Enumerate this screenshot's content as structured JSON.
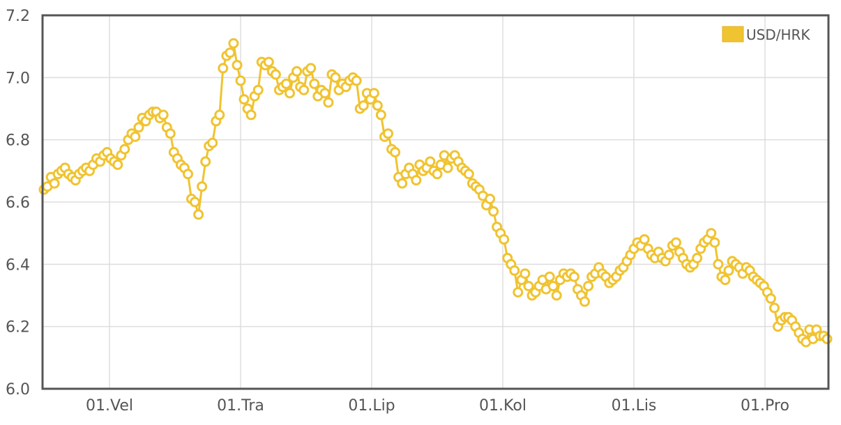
{
  "chart_data": {
    "type": "line",
    "title": "",
    "xlabel": "",
    "ylabel": "",
    "ylim": [
      6.0,
      7.2
    ],
    "y_ticks": [
      "6.0",
      "6.2",
      "6.4",
      "6.6",
      "6.8",
      "7.0",
      "7.2"
    ],
    "x_tick_labels": [
      "01.Vel",
      "01.Tra",
      "01.Lip",
      "01.Kol",
      "01.Lis",
      "01.Pro"
    ],
    "grid": true,
    "legend_position": "top-right",
    "series": [
      {
        "name": "USD/HRK",
        "color": "#f0c330",
        "marker": "hollow-circle",
        "values": [
          6.64,
          6.65,
          6.68,
          6.66,
          6.69,
          6.7,
          6.71,
          6.69,
          6.68,
          6.67,
          6.69,
          6.7,
          6.71,
          6.7,
          6.72,
          6.74,
          6.73,
          6.75,
          6.76,
          6.74,
          6.73,
          6.72,
          6.75,
          6.77,
          6.8,
          6.82,
          6.81,
          6.84,
          6.87,
          6.86,
          6.88,
          6.89,
          6.89,
          6.87,
          6.88,
          6.84,
          6.82,
          6.76,
          6.74,
          6.72,
          6.71,
          6.69,
          6.61,
          6.6,
          6.56,
          6.65,
          6.73,
          6.78,
          6.79,
          6.86,
          6.88,
          7.03,
          7.07,
          7.08,
          7.11,
          7.04,
          6.99,
          6.93,
          6.9,
          6.88,
          6.94,
          6.96,
          7.05,
          7.04,
          7.05,
          7.02,
          7.01,
          6.96,
          6.97,
          6.98,
          6.95,
          7.0,
          7.02,
          6.97,
          6.96,
          7.02,
          7.03,
          6.98,
          6.94,
          6.96,
          6.95,
          6.92,
          7.01,
          7.0,
          6.96,
          6.98,
          6.97,
          6.99,
          7.0,
          6.99,
          6.9,
          6.91,
          6.95,
          6.93,
          6.95,
          6.91,
          6.88,
          6.81,
          6.82,
          6.77,
          6.76,
          6.68,
          6.66,
          6.69,
          6.71,
          6.69,
          6.67,
          6.72,
          6.7,
          6.71,
          6.73,
          6.7,
          6.69,
          6.72,
          6.75,
          6.71,
          6.74,
          6.75,
          6.73,
          6.71,
          6.7,
          6.69,
          6.66,
          6.65,
          6.64,
          6.62,
          6.59,
          6.61,
          6.57,
          6.52,
          6.5,
          6.48,
          6.42,
          6.4,
          6.38,
          6.31,
          6.35,
          6.37,
          6.33,
          6.3,
          6.31,
          6.33,
          6.35,
          6.32,
          6.36,
          6.33,
          6.3,
          6.35,
          6.37,
          6.36,
          6.37,
          6.36,
          6.32,
          6.3,
          6.28,
          6.33,
          6.36,
          6.37,
          6.39,
          6.37,
          6.36,
          6.34,
          6.35,
          6.36,
          6.38,
          6.39,
          6.41,
          6.43,
          6.45,
          6.47,
          6.46,
          6.48,
          6.45,
          6.43,
          6.42,
          6.44,
          6.42,
          6.41,
          6.43,
          6.46,
          6.47,
          6.44,
          6.42,
          6.4,
          6.39,
          6.4,
          6.42,
          6.45,
          6.47,
          6.48,
          6.5,
          6.47,
          6.4,
          6.36,
          6.35,
          6.38,
          6.41,
          6.4,
          6.39,
          6.37,
          6.39,
          6.38,
          6.36,
          6.35,
          6.34,
          6.33,
          6.31,
          6.29,
          6.26,
          6.2,
          6.22,
          6.23,
          6.23,
          6.22,
          6.2,
          6.18,
          6.16,
          6.15,
          6.19,
          6.16,
          6.19,
          6.17,
          6.17,
          6.16
        ]
      }
    ]
  }
}
